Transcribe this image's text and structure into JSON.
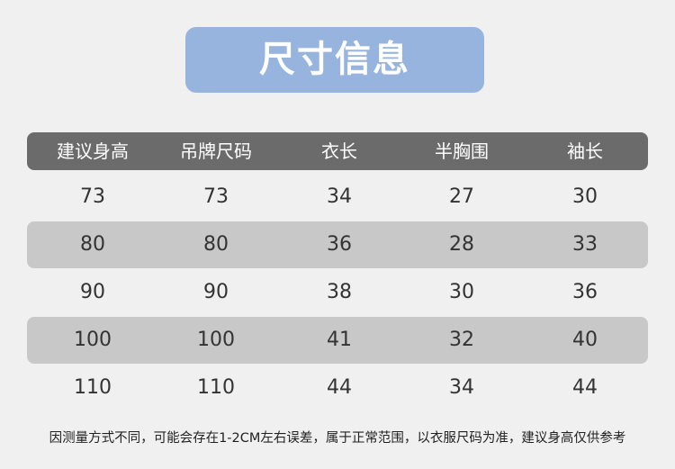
{
  "header": {
    "title": "尺寸信息"
  },
  "table": {
    "columns": [
      "建议身高",
      "吊牌尺码",
      "衣长",
      "半胸围",
      "袖长"
    ],
    "rows": [
      [
        73,
        73,
        34,
        27,
        30
      ],
      [
        80,
        80,
        36,
        28,
        33
      ],
      [
        90,
        90,
        38,
        30,
        36
      ],
      [
        100,
        100,
        41,
        32,
        40
      ],
      [
        110,
        110,
        44,
        34,
        44
      ]
    ]
  },
  "footnote": "因测量方式不同，可能会存在1-2CM左右误差，属于正常范围，以衣服尺码为准，建议身高仅供参考"
}
